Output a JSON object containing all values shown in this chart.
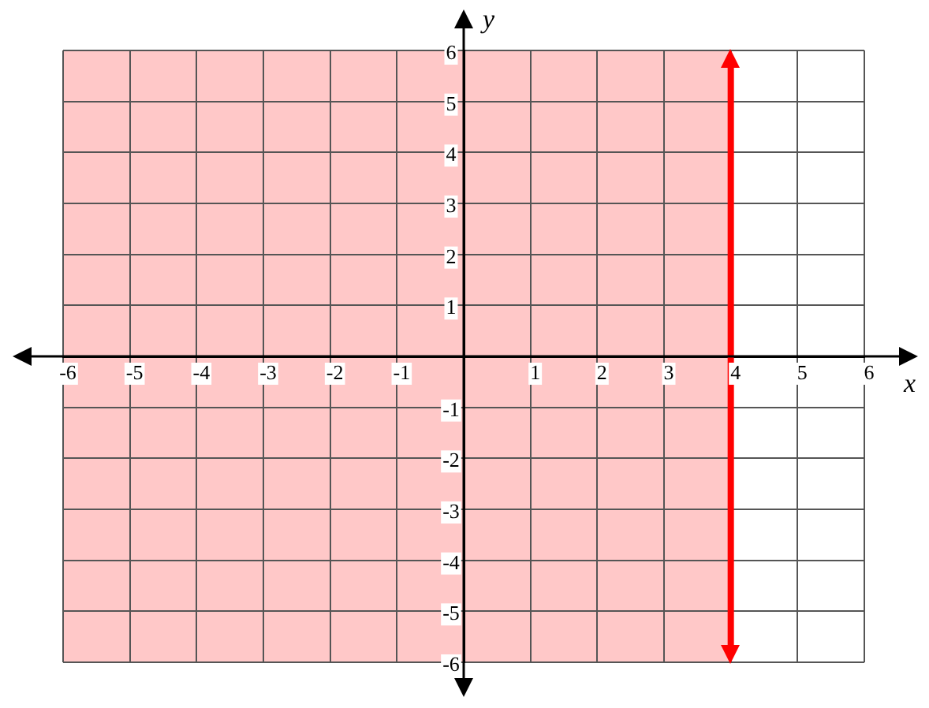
{
  "chart_data": {
    "type": "line",
    "xlabel": "x",
    "ylabel": "y",
    "xlim": [
      -6,
      6
    ],
    "ylim": [
      -6,
      6
    ],
    "xticks": [
      -6,
      -5,
      -4,
      -3,
      -2,
      -1,
      1,
      2,
      3,
      4,
      5,
      6
    ],
    "yticks": [
      -6,
      -5,
      -4,
      -3,
      -2,
      -1,
      1,
      2,
      3,
      4,
      5,
      6
    ],
    "grid": true,
    "ref_lines": [
      {
        "axis": "x",
        "value": 4,
        "color": "#ff0000",
        "line_style": "solid"
      }
    ],
    "bands": [
      {
        "axis": "x",
        "from": -6,
        "to": 4,
        "color": "#ffc8c8"
      }
    ]
  }
}
